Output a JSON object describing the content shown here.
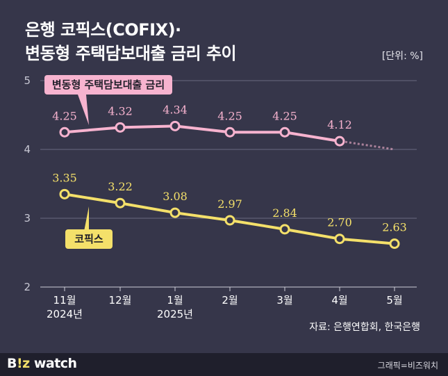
{
  "title_line1": "은행 코픽스(COFIX)·",
  "title_line2": "변동형 주택담보대출 금리 추이",
  "unit_label": "[단위: %]",
  "source": "자료: 은행연합회, 한국은행",
  "footer": {
    "logo_main": "B",
    "logo_accent": "!z",
    "logo_rest": " watch",
    "credit": "그래픽=비즈워치"
  },
  "chart_data": {
    "type": "line",
    "title": "은행 코픽스(COFIX)· 변동형 주택담보대출 금리 추이",
    "xlabel": "",
    "ylabel": "",
    "ylim": [
      2,
      5
    ],
    "yticks": [
      "2",
      "3",
      "4",
      "5"
    ],
    "grid": true,
    "categories": [
      "11월",
      "12월",
      "1월",
      "2월",
      "3월",
      "4월",
      "5월"
    ],
    "category_sublabels": [
      "2024년",
      "",
      "2025년",
      "",
      "",
      "",
      ""
    ],
    "series": [
      {
        "name": "변동형 주택담보대출 금리",
        "color": "#f7b3cf",
        "values": [
          4.25,
          4.32,
          4.34,
          4.25,
          4.25,
          4.12,
          null
        ],
        "labels": [
          "4.25",
          "4.32",
          "4.34",
          "4.25",
          "4.25",
          "4.12",
          ""
        ],
        "projected_to": 4.0
      },
      {
        "name": "코픽스",
        "color": "#f4e06a",
        "values": [
          3.35,
          3.22,
          3.08,
          2.97,
          2.84,
          2.7,
          2.63
        ],
        "labels": [
          "3.35",
          "3.22",
          "3.08",
          "2.97",
          "2.84",
          "2.70",
          "2.63"
        ]
      }
    ]
  }
}
